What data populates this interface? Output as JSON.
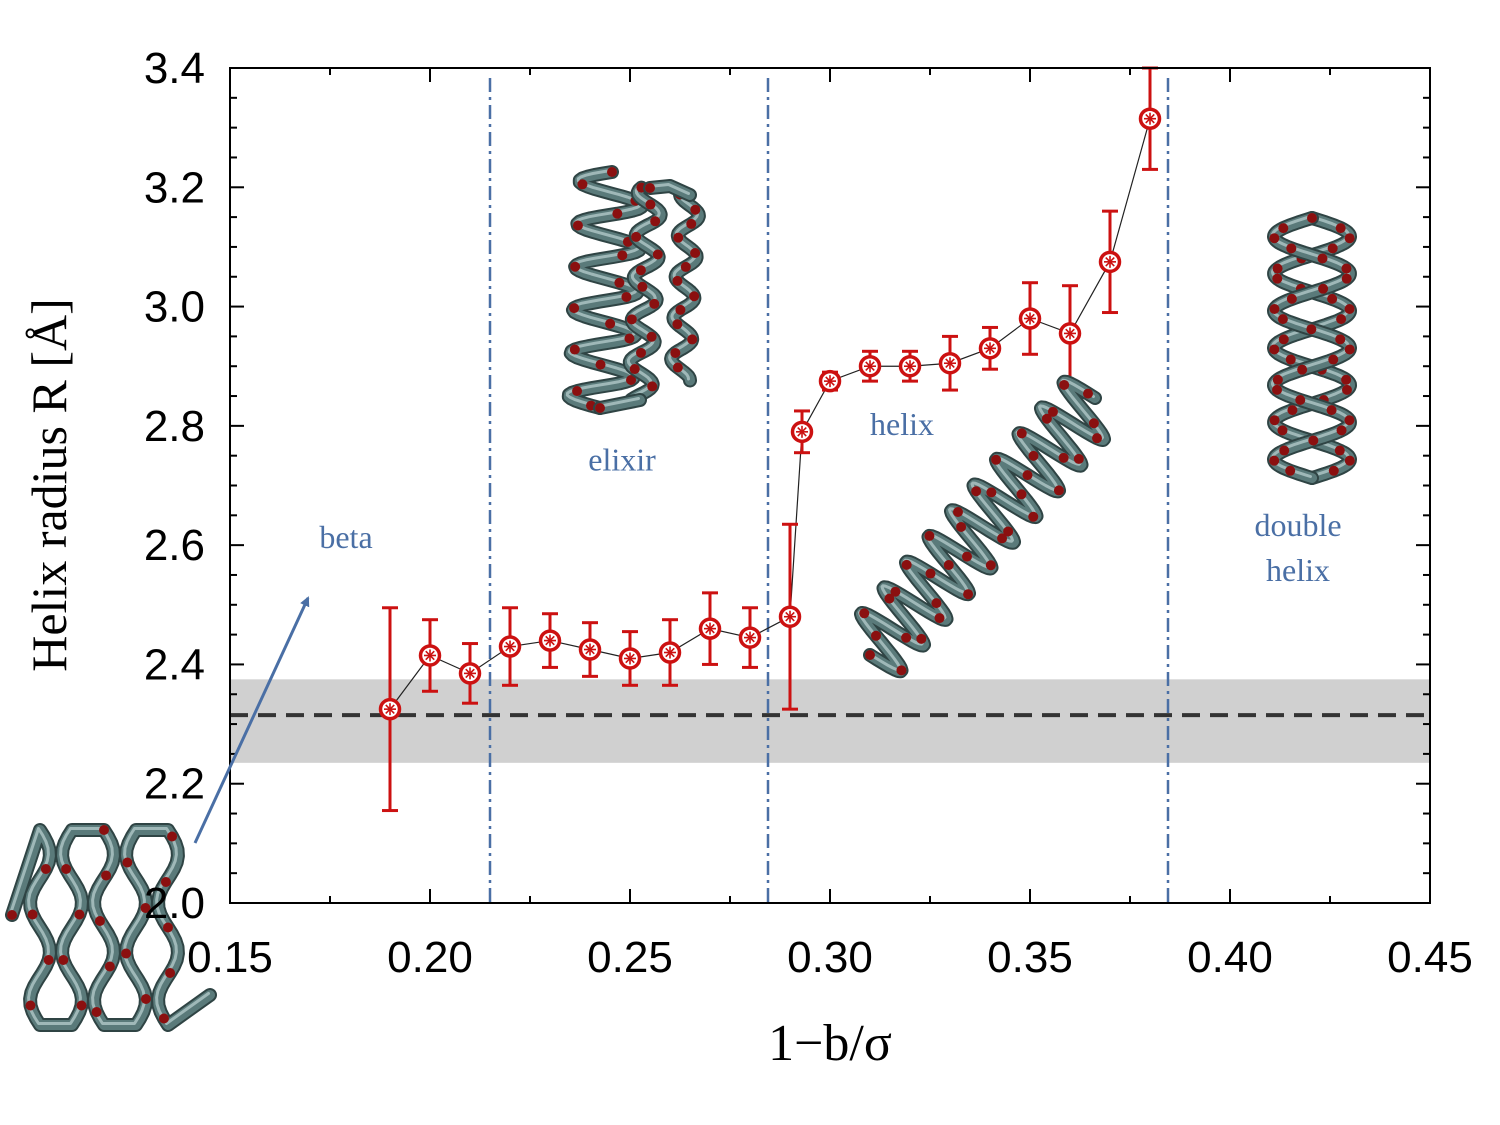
{
  "chart_data": {
    "type": "scatter",
    "title": "",
    "xlabel": "1−b/σ",
    "ylabel": "Helix radius R [Å]",
    "xlim": [
      0.15,
      0.45
    ],
    "ylim": [
      2.0,
      3.4
    ],
    "xticks": [
      "0.15",
      "0.20",
      "0.25",
      "0.30",
      "0.35",
      "0.40",
      "0.45"
    ],
    "yticks": [
      "2.0",
      "2.2",
      "2.4",
      "2.6",
      "2.8",
      "3.0",
      "3.2",
      "3.4"
    ],
    "series": [
      {
        "name": "helix radius",
        "x": [
          0.19,
          0.2,
          0.21,
          0.22,
          0.23,
          0.24,
          0.25,
          0.26,
          0.27,
          0.28,
          0.29,
          0.293,
          0.3,
          0.31,
          0.32,
          0.33,
          0.34,
          0.35,
          0.36,
          0.37,
          0.38
        ],
        "y": [
          2.325,
          2.415,
          2.385,
          2.43,
          2.44,
          2.425,
          2.41,
          2.42,
          2.46,
          2.445,
          2.48,
          2.79,
          2.875,
          2.9,
          2.9,
          2.905,
          2.93,
          2.98,
          2.955,
          3.075,
          3.315
        ],
        "yerr": [
          0.17,
          0.06,
          0.05,
          0.065,
          0.045,
          0.045,
          0.045,
          0.055,
          0.06,
          0.05,
          0.155,
          0.035,
          0.015,
          0.025,
          0.025,
          0.045,
          0.035,
          0.06,
          0.08,
          0.085,
          0.085
        ],
        "color": "#cc1111"
      }
    ],
    "reference_line": {
      "y": 2.315,
      "band": [
        2.235,
        2.375
      ],
      "color": "#333333"
    },
    "region_boundaries": [
      0.215,
      0.2845,
      0.3845
    ],
    "region_labels": [
      {
        "text": "beta",
        "x": 0.179,
        "y": 2.595
      },
      {
        "text": "elixir",
        "x": 0.248,
        "y": 2.725
      },
      {
        "text": "helix",
        "x": 0.318,
        "y": 2.785
      },
      {
        "text": "double",
        "x": 0.417,
        "y": 2.615
      },
      {
        "text": "helix",
        "x": 0.417,
        "y": 2.54
      }
    ],
    "colors": {
      "region": "#4a6fa5",
      "band": "#d0d0d0",
      "tube": "#5a7a7a",
      "bead": "#8b1010"
    }
  }
}
